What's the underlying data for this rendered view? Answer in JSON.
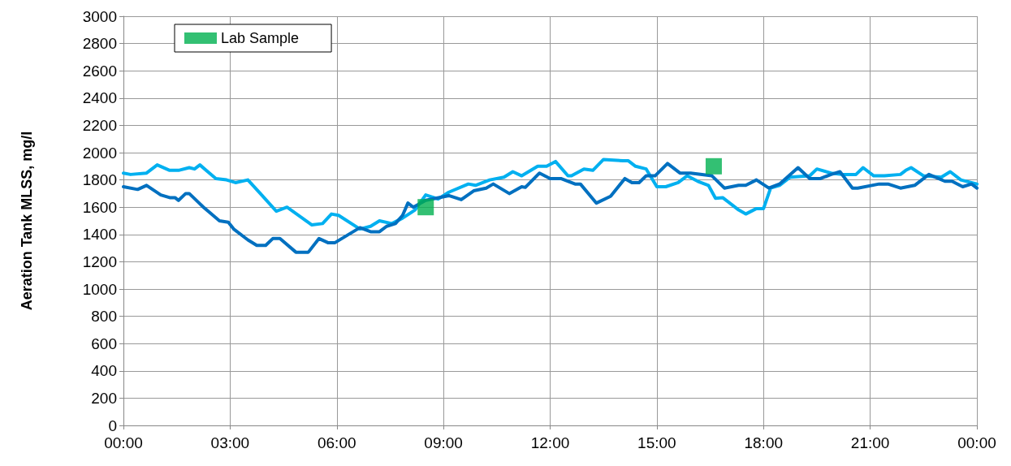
{
  "chart_data": {
    "type": "line",
    "ylabel": "Aeration Tank MLSS, mg/l",
    "xlim": [
      0,
      24
    ],
    "xticks": [
      {
        "value": 0,
        "label": "00:00"
      },
      {
        "value": 3,
        "label": "03:00"
      },
      {
        "value": 6,
        "label": "06:00"
      },
      {
        "value": 9,
        "label": "09:00"
      },
      {
        "value": 12,
        "label": "12:00"
      },
      {
        "value": 15,
        "label": "15:00"
      },
      {
        "value": 18,
        "label": "18:00"
      },
      {
        "value": 21,
        "label": "21:00"
      },
      {
        "value": 24,
        "label": "00:00"
      }
    ],
    "ylim": [
      0,
      3000
    ],
    "yticks": [
      0,
      200,
      400,
      600,
      800,
      1000,
      1200,
      1400,
      1600,
      1800,
      2000,
      2200,
      2400,
      2600,
      2800,
      3000
    ],
    "grid": true,
    "legend": "top left",
    "line_style": "solid",
    "series": [
      {
        "name": "Lab Sample",
        "type": "scatter",
        "marker": "square",
        "color": "#00b050",
        "x": [
          8.5,
          16.6
        ],
        "values": [
          1600,
          1900
        ]
      },
      {
        "color": "#00b0f0",
        "marker": "none",
        "x": [
          0,
          0.2,
          0.65,
          0.95,
          1.3,
          1.55,
          1.85,
          2,
          2.15,
          2.6,
          2.9,
          3.15,
          3.5,
          3.85,
          4.3,
          4.6,
          5.3,
          5.6,
          5.85,
          6.05,
          6.65,
          6.95,
          7.2,
          7.55,
          7.85,
          8.2,
          8.5,
          8.85,
          9.15,
          9.7,
          9.9,
          10.3,
          10.7,
          10.95,
          11.2,
          11.65,
          11.9,
          12.15,
          12.5,
          12.6,
          12.95,
          13.2,
          13.5,
          14.05,
          14.2,
          14.4,
          14.7,
          15,
          15.25,
          15.6,
          15.85,
          16.15,
          16.45,
          16.65,
          16.85,
          17.3,
          17.5,
          17.8,
          18,
          18.2,
          18.45,
          18.75,
          19.3,
          19.5,
          19.9,
          20.2,
          20.6,
          20.8,
          21.1,
          21.4,
          21.85,
          22,
          22.15,
          22.5,
          23,
          23.25,
          23.55,
          24
        ],
        "values": [
          1850,
          1840,
          1850,
          1910,
          1870,
          1870,
          1890,
          1880,
          1910,
          1810,
          1800,
          1780,
          1800,
          1700,
          1570,
          1600,
          1470,
          1480,
          1550,
          1540,
          1440,
          1460,
          1500,
          1480,
          1520,
          1580,
          1690,
          1660,
          1710,
          1770,
          1760,
          1800,
          1820,
          1860,
          1830,
          1900,
          1900,
          1935,
          1830,
          1830,
          1880,
          1870,
          1950,
          1940,
          1940,
          1900,
          1880,
          1750,
          1750,
          1780,
          1830,
          1790,
          1760,
          1665,
          1670,
          1580,
          1550,
          1590,
          1590,
          1740,
          1760,
          1820,
          1830,
          1880,
          1850,
          1840,
          1840,
          1890,
          1830,
          1830,
          1840,
          1870,
          1890,
          1830,
          1820,
          1860,
          1800,
          1770
        ]
      },
      {
        "color": "#0070c0",
        "marker": "none",
        "x": [
          0,
          0.4,
          0.65,
          1.05,
          1.3,
          1.45,
          1.55,
          1.75,
          1.85,
          2.25,
          2.7,
          2.95,
          3.1,
          3.5,
          3.75,
          4,
          4.2,
          4.4,
          4.85,
          5.2,
          5.5,
          5.75,
          5.95,
          6.65,
          6.95,
          7.2,
          7.4,
          7.65,
          7.85,
          8,
          8.15,
          8.5,
          9.15,
          9.5,
          9.85,
          10.2,
          10.4,
          10.85,
          11.2,
          11.3,
          11.7,
          12,
          12.3,
          12.7,
          12.85,
          13.3,
          13.7,
          14.1,
          14.3,
          14.5,
          14.7,
          14.95,
          15.3,
          15.65,
          15.95,
          16.55,
          16.9,
          17.3,
          17.5,
          17.8,
          18.15,
          18.45,
          18.97,
          19.3,
          19.6,
          19.9,
          20.15,
          20.5,
          20.65,
          21.25,
          21.5,
          21.85,
          22.25,
          22.65,
          23.1,
          23.3,
          23.6,
          23.85,
          24
        ],
        "values": [
          1750,
          1730,
          1760,
          1690,
          1670,
          1670,
          1650,
          1700,
          1700,
          1600,
          1500,
          1490,
          1440,
          1360,
          1320,
          1320,
          1370,
          1370,
          1270,
          1270,
          1370,
          1340,
          1340,
          1450,
          1420,
          1420,
          1460,
          1480,
          1540,
          1630,
          1600,
          1650,
          1685,
          1655,
          1720,
          1740,
          1770,
          1700,
          1750,
          1745,
          1850,
          1810,
          1810,
          1770,
          1770,
          1630,
          1680,
          1810,
          1780,
          1780,
          1830,
          1830,
          1920,
          1850,
          1850,
          1830,
          1740,
          1760,
          1760,
          1800,
          1740,
          1770,
          1890,
          1810,
          1810,
          1840,
          1860,
          1740,
          1740,
          1770,
          1770,
          1740,
          1760,
          1840,
          1790,
          1790,
          1750,
          1770,
          1740
        ]
      }
    ]
  }
}
